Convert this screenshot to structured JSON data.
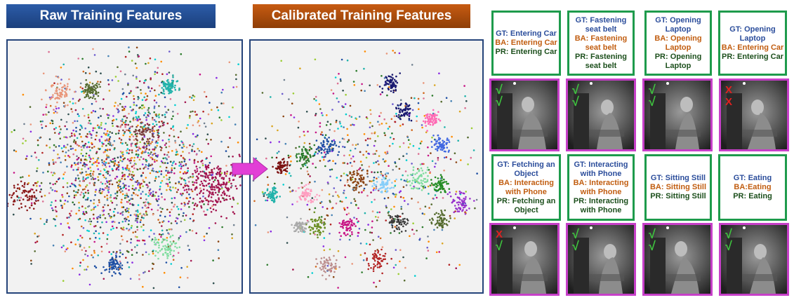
{
  "panels": {
    "raw_title": "Raw Training Features",
    "calibrated_title": "Calibrated Training Features"
  },
  "colors": {
    "raw_banner": "#2c5ca8",
    "calibrated_banner": "#c75b12",
    "panel_border": "#25447a",
    "label_box_border": "#1e9b4c",
    "image_border": "#c63fc8",
    "arrow": "#e23fd6",
    "gt": "#2b4d9b",
    "ba": "#c15d10",
    "pr": "#1c4f1c"
  },
  "examples": [
    {
      "gt": "GT: Entering Car",
      "ba": "BA: Entering Car",
      "pr": "PR: Entering Car",
      "marks": [
        "check",
        "check"
      ]
    },
    {
      "gt": "GT: Fastening seat belt",
      "ba": "BA: Fastening seat belt",
      "pr": "PR: Fastening seat belt",
      "marks": [
        "check",
        "check"
      ]
    },
    {
      "gt": "GT: Opening Laptop",
      "ba": "BA: Opening Laptop",
      "pr": "PR: Opening Laptop",
      "marks": [
        "check",
        "check"
      ]
    },
    {
      "gt": "GT: Opening Laptop",
      "ba": "BA: Entering Car",
      "pr": "PR: Entering Car",
      "marks": [
        "cross",
        "cross"
      ]
    },
    {
      "gt": "GT: Fetching an Object",
      "ba": "BA: Interacting with Phone",
      "pr": "PR: Fetching an Object",
      "marks": [
        "cross",
        "check"
      ]
    },
    {
      "gt": "GT: Interacting with Phone",
      "ba": "BA: Interacting with Phone",
      "pr": "PR: Interacting with Phone",
      "marks": [
        "check",
        "check"
      ]
    },
    {
      "gt": "GT: Sitting Still",
      "ba": "BA: Sitting Still",
      "pr": "PR: Sitting Still",
      "marks": [
        "check",
        "check"
      ]
    },
    {
      "gt": "GT: Eating",
      "ba": "BA:Eating",
      "pr": "PR: Eating",
      "marks": [
        "check",
        "check"
      ]
    }
  ],
  "mark_glyphs": {
    "check": "√",
    "cross": "X"
  }
}
